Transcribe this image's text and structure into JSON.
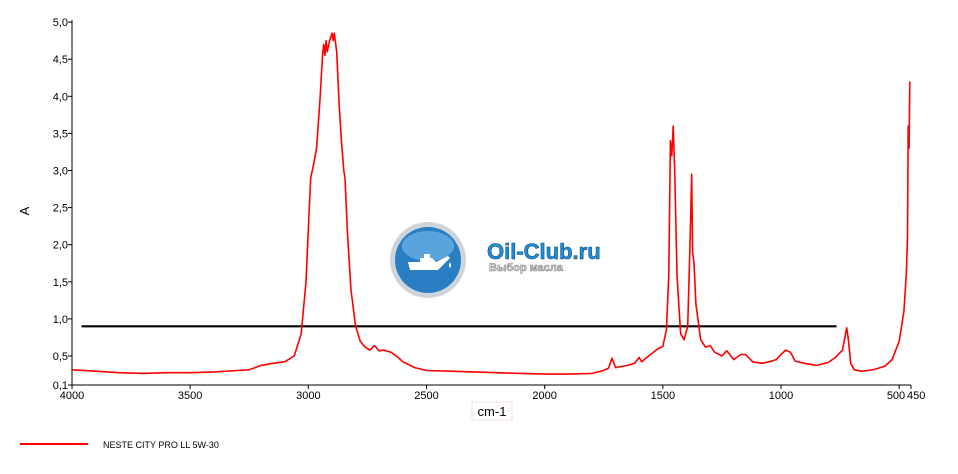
{
  "chart_data": {
    "type": "line",
    "xlabel": "cm-1",
    "ylabel": "A",
    "xlim": [
      4000,
      450
    ],
    "ylim": [
      0.1,
      5.0
    ],
    "x_ticks": [
      {
        "value": 4000,
        "label": "4000"
      },
      {
        "value": 3500,
        "label": "3500"
      },
      {
        "value": 3000,
        "label": "3000"
      },
      {
        "value": 2500,
        "label": "2500"
      },
      {
        "value": 2000,
        "label": "2000"
      },
      {
        "value": 1500,
        "label": "1500"
      },
      {
        "value": 1000,
        "label": "1000"
      },
      {
        "value": 500,
        "label": "500"
      },
      {
        "value": 450,
        "label": "450"
      }
    ],
    "y_ticks": [
      {
        "value": 0.1,
        "label": "0,1"
      },
      {
        "value": 0.5,
        "label": "0,5"
      },
      {
        "value": 1.0,
        "label": "1,0"
      },
      {
        "value": 1.5,
        "label": "1,5"
      },
      {
        "value": 2.0,
        "label": "2,0"
      },
      {
        "value": 2.5,
        "label": "2,5"
      },
      {
        "value": 3.0,
        "label": "3,0"
      },
      {
        "value": 3.5,
        "label": "3,5"
      },
      {
        "value": 4.0,
        "label": "4,0"
      },
      {
        "value": 4.5,
        "label": "4,5"
      },
      {
        "value": 5.0,
        "label": "5,0"
      }
    ],
    "grid": false,
    "legend_position": "bottom-left",
    "series": [
      {
        "name": "NESTE CITY PRO LL 5W-30",
        "color": "#ff0000",
        "points": [
          [
            4000,
            0.31
          ],
          [
            3900,
            0.29
          ],
          [
            3800,
            0.27
          ],
          [
            3700,
            0.26
          ],
          [
            3600,
            0.27
          ],
          [
            3500,
            0.27
          ],
          [
            3400,
            0.28
          ],
          [
            3300,
            0.3
          ],
          [
            3250,
            0.31
          ],
          [
            3200,
            0.37
          ],
          [
            3150,
            0.4
          ],
          [
            3100,
            0.42
          ],
          [
            3060,
            0.5
          ],
          [
            3030,
            0.8
          ],
          [
            3010,
            1.5
          ],
          [
            3000,
            2.2
          ],
          [
            2990,
            2.9
          ],
          [
            2980,
            3.05
          ],
          [
            2965,
            3.3
          ],
          [
            2950,
            4.0
          ],
          [
            2940,
            4.55
          ],
          [
            2935,
            4.7
          ],
          [
            2930,
            4.55
          ],
          [
            2925,
            4.75
          ],
          [
            2920,
            4.6
          ],
          [
            2910,
            4.75
          ],
          [
            2900,
            4.85
          ],
          [
            2895,
            4.75
          ],
          [
            2890,
            4.85
          ],
          [
            2880,
            4.6
          ],
          [
            2870,
            3.9
          ],
          [
            2860,
            3.4
          ],
          [
            2850,
            3.0
          ],
          [
            2845,
            2.9
          ],
          [
            2835,
            2.2
          ],
          [
            2820,
            1.4
          ],
          [
            2800,
            0.9
          ],
          [
            2780,
            0.7
          ],
          [
            2760,
            0.62
          ],
          [
            2740,
            0.58
          ],
          [
            2720,
            0.64
          ],
          [
            2700,
            0.57
          ],
          [
            2680,
            0.58
          ],
          [
            2650,
            0.55
          ],
          [
            2620,
            0.48
          ],
          [
            2600,
            0.42
          ],
          [
            2550,
            0.34
          ],
          [
            2500,
            0.3
          ],
          [
            2400,
            0.29
          ],
          [
            2300,
            0.28
          ],
          [
            2200,
            0.27
          ],
          [
            2100,
            0.26
          ],
          [
            2000,
            0.25
          ],
          [
            1900,
            0.25
          ],
          [
            1800,
            0.26
          ],
          [
            1760,
            0.29
          ],
          [
            1730,
            0.33
          ],
          [
            1715,
            0.47
          ],
          [
            1700,
            0.34
          ],
          [
            1650,
            0.37
          ],
          [
            1620,
            0.4
          ],
          [
            1600,
            0.48
          ],
          [
            1590,
            0.42
          ],
          [
            1560,
            0.5
          ],
          [
            1520,
            0.6
          ],
          [
            1500,
            0.63
          ],
          [
            1485,
            0.85
          ],
          [
            1475,
            1.6
          ],
          [
            1468,
            3.4
          ],
          [
            1462,
            3.2
          ],
          [
            1456,
            3.6
          ],
          [
            1450,
            3.0
          ],
          [
            1440,
            1.6
          ],
          [
            1425,
            0.8
          ],
          [
            1410,
            0.72
          ],
          [
            1395,
            0.9
          ],
          [
            1385,
            2.0
          ],
          [
            1378,
            2.95
          ],
          [
            1374,
            1.9
          ],
          [
            1368,
            1.75
          ],
          [
            1360,
            1.2
          ],
          [
            1340,
            0.72
          ],
          [
            1320,
            0.62
          ],
          [
            1300,
            0.64
          ],
          [
            1280,
            0.55
          ],
          [
            1250,
            0.5
          ],
          [
            1230,
            0.57
          ],
          [
            1200,
            0.45
          ],
          [
            1170,
            0.52
          ],
          [
            1150,
            0.52
          ],
          [
            1120,
            0.42
          ],
          [
            1080,
            0.4
          ],
          [
            1050,
            0.42
          ],
          [
            1020,
            0.45
          ],
          [
            1000,
            0.52
          ],
          [
            980,
            0.58
          ],
          [
            960,
            0.55
          ],
          [
            940,
            0.43
          ],
          [
            900,
            0.4
          ],
          [
            850,
            0.37
          ],
          [
            800,
            0.41
          ],
          [
            770,
            0.48
          ],
          [
            740,
            0.58
          ],
          [
            722,
            0.88
          ],
          [
            715,
            0.72
          ],
          [
            705,
            0.4
          ],
          [
            690,
            0.31
          ],
          [
            660,
            0.29
          ],
          [
            630,
            0.3
          ],
          [
            600,
            0.32
          ],
          [
            560,
            0.36
          ],
          [
            530,
            0.45
          ],
          [
            500,
            0.7
          ],
          [
            480,
            1.1
          ],
          [
            470,
            1.6
          ],
          [
            465,
            2.1
          ],
          [
            462,
            3.6
          ],
          [
            458,
            3.3
          ],
          [
            455,
            4.2
          ]
        ]
      }
    ],
    "reference_line": {
      "y": 0.9,
      "x_from": 3960,
      "x_to": 765,
      "color": "#000000"
    }
  },
  "watermark": {
    "title": "Oil-Club.ru",
    "subtitle": "Выбор масла",
    "icon": "oil-can-icon"
  }
}
